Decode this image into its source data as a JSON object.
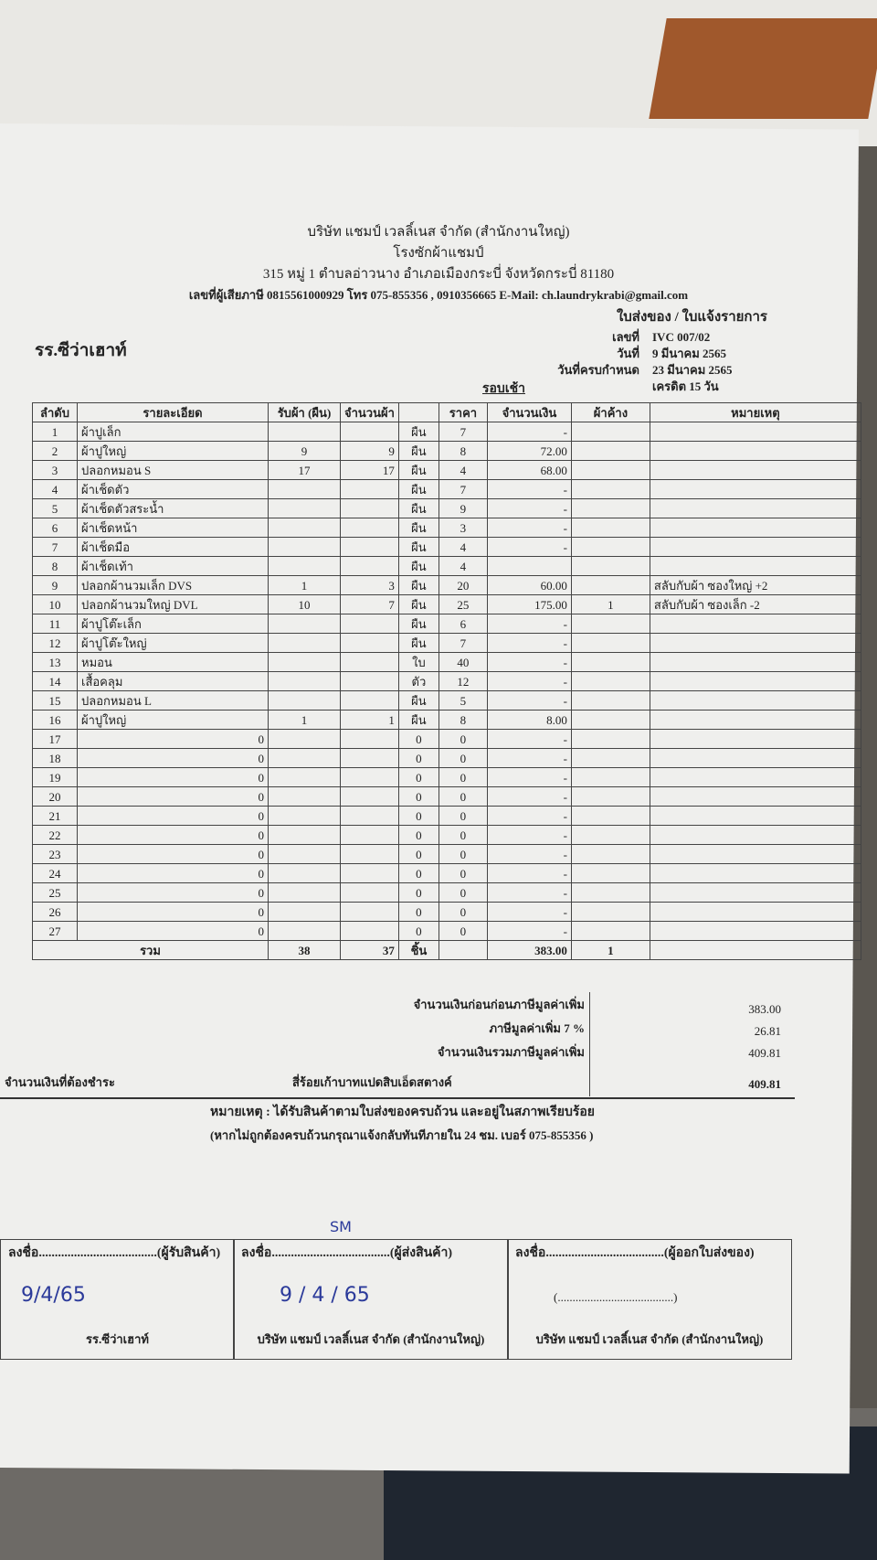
{
  "company": {
    "name": "บริษัท แชมป์ เวลลิ์เนส จำกัด (สำนักงานใหญ่)",
    "sub": "โรงซักผ้าแชมป์",
    "address": "315 หมู่ 1 ตำบลอ่าวนาง อำเภอเมืองกระบี่ จังหวัดกระบี่ 81180",
    "contact": "เลขที่ผู้เสียภาษี 0815561000929 โทร 075-855356 , 0910356665 E-Mail: ch.laundrykrabi@gmail.com",
    "doc_type": "ใบส่งของ / ใบแจ้งรายการ"
  },
  "customer": "รร.ซีว่าเฮาท์",
  "meta": {
    "no_label": "เลขที่",
    "no": "IVC 007/02",
    "date_label": "วันที่",
    "date": "9 มีนาคม 2565",
    "due_label": "วันที่ครบกำหนด",
    "due": "23 มีนาคม 2565",
    "round": "รอบเช้า",
    "credit": "เครดิต 15 วัน"
  },
  "columns": [
    "ลำดับ",
    "รายละเอียด",
    "รับผ้า (ผืน)",
    "จำนวนผ้า",
    "",
    "ราคา",
    "จำนวนเงิน",
    "ผ้าค้าง",
    "หมายเหตุ"
  ],
  "rows": [
    [
      "1",
      "ผ้าปูเล็ก",
      "",
      "",
      "ผืน",
      "7",
      "-",
      "",
      ""
    ],
    [
      "2",
      "ผ้าปูใหญ่",
      "9",
      "9",
      "ผืน",
      "8",
      "72.00",
      "",
      ""
    ],
    [
      "3",
      "ปลอกหมอน S",
      "17",
      "17",
      "ผืน",
      "4",
      "68.00",
      "",
      ""
    ],
    [
      "4",
      "ผ้าเช็ดตัว",
      "",
      "",
      "ผืน",
      "7",
      "-",
      "",
      ""
    ],
    [
      "5",
      "ผ้าเช็ดตัวสระน้ำ",
      "",
      "",
      "ผืน",
      "9",
      "-",
      "",
      ""
    ],
    [
      "6",
      "ผ้าเช็ดหน้า",
      "",
      "",
      "ผืน",
      "3",
      "-",
      "",
      ""
    ],
    [
      "7",
      "ผ้าเช็ดมือ",
      "",
      "",
      "ผืน",
      "4",
      "-",
      "",
      ""
    ],
    [
      "8",
      "ผ้าเช็ดเท้า",
      "",
      "",
      "ผืน",
      "4",
      "",
      "",
      ""
    ],
    [
      "9",
      "ปลอกผ้านวมเล็ก DVS",
      "1",
      "3",
      "ผืน",
      "20",
      "60.00",
      "",
      "สลับกับผ้า ซองใหญ่ +2"
    ],
    [
      "10",
      "ปลอกผ้านวมใหญ่ DVL",
      "10",
      "7",
      "ผืน",
      "25",
      "175.00",
      "1",
      "สลับกับผ้า ซองเล็ก -2"
    ],
    [
      "11",
      "ผ้าปูโต๊ะเล็ก",
      "",
      "",
      "ผืน",
      "6",
      "-",
      "",
      ""
    ],
    [
      "12",
      "ผ้าปูโต๊ะใหญ่",
      "",
      "",
      "ผืน",
      "7",
      "-",
      "",
      ""
    ],
    [
      "13",
      "หมอน",
      "",
      "",
      "ใบ",
      "40",
      "-",
      "",
      ""
    ],
    [
      "14",
      "เสื้อคลุม",
      "",
      "",
      "ตัว",
      "12",
      "-",
      "",
      ""
    ],
    [
      "15",
      "ปลอกหมอน L",
      "",
      "",
      "ผืน",
      "5",
      "-",
      "",
      ""
    ],
    [
      "16",
      "ผ้าปูใหญ่",
      "1",
      "1",
      "ผืน",
      "8",
      "8.00",
      "",
      ""
    ],
    [
      "17",
      "0",
      "",
      "",
      "0",
      "0",
      "-",
      "",
      ""
    ],
    [
      "18",
      "0",
      "",
      "",
      "0",
      "0",
      "-",
      "",
      ""
    ],
    [
      "19",
      "0",
      "",
      "",
      "0",
      "0",
      "-",
      "",
      ""
    ],
    [
      "20",
      "0",
      "",
      "",
      "0",
      "0",
      "-",
      "",
      ""
    ],
    [
      "21",
      "0",
      "",
      "",
      "0",
      "0",
      "-",
      "",
      ""
    ],
    [
      "22",
      "0",
      "",
      "",
      "0",
      "0",
      "-",
      "",
      ""
    ],
    [
      "23",
      "0",
      "",
      "",
      "0",
      "0",
      "-",
      "",
      ""
    ],
    [
      "24",
      "0",
      "",
      "",
      "0",
      "0",
      "-",
      "",
      ""
    ],
    [
      "25",
      "0",
      "",
      "",
      "0",
      "0",
      "-",
      "",
      ""
    ],
    [
      "26",
      "0",
      "",
      "",
      "0",
      "0",
      "-",
      "",
      ""
    ],
    [
      "27",
      "0",
      "",
      "",
      "0",
      "0",
      "-",
      "",
      ""
    ]
  ],
  "total_row": {
    "label": "รวม",
    "recv": "38",
    "qty": "37",
    "unit": "ชิ้น",
    "amount": "383.00",
    "pending": "1"
  },
  "summary": {
    "pre_vat_label": "จำนวนเงินก่อนก่อนภาษีมูลค่าเพิ่ม",
    "pre_vat": "383.00",
    "vat_label": "ภาษีมูลค่าเพิ่ม 7 %",
    "vat": "26.81",
    "incl_label": "จำนวนเงินรวมภาษีมูลค่าเพิ่ม",
    "incl": "409.81",
    "due_label": "จำนวนเงินที่ต้องชำระ",
    "due_words": "สี่ร้อยเก้าบาทแปดสิบเอ็ดสตางค์",
    "due": "409.81"
  },
  "note1": "หมายเหตุ : ได้รับสินค้าตามใบส่งของครบถ้วน และอยู่ในสภาพเรียบร้อย",
  "note2": "(หากไม่ถูกต้องครบถ้วนกรุณาแจ้งกลับทันทีภายใน 24 ชม. เบอร์ 075-855356 )",
  "signatures": [
    {
      "label": "ลงชื่อ.....................................(ผู้รับสินค้า)",
      "date": "9/4/65",
      "org": "รร.ซีว่าเฮาท์"
    },
    {
      "label": "ลงชื่อ.....................................(ผู้ส่งสินค้า)",
      "mark": "SM",
      "date": "9 / 4 / 65",
      "org": "บริษัท แชมป์ เวลลิ์เนส จำกัด (สำนักงานใหญ่)"
    },
    {
      "label": "ลงชื่อ.....................................(ผู้ออกใบส่งของ)",
      "date": "(.......................................)",
      "org": "บริษัท แชมป์ เวลลิ์เนส จำกัด (สำนักงานใหญ่)"
    }
  ]
}
